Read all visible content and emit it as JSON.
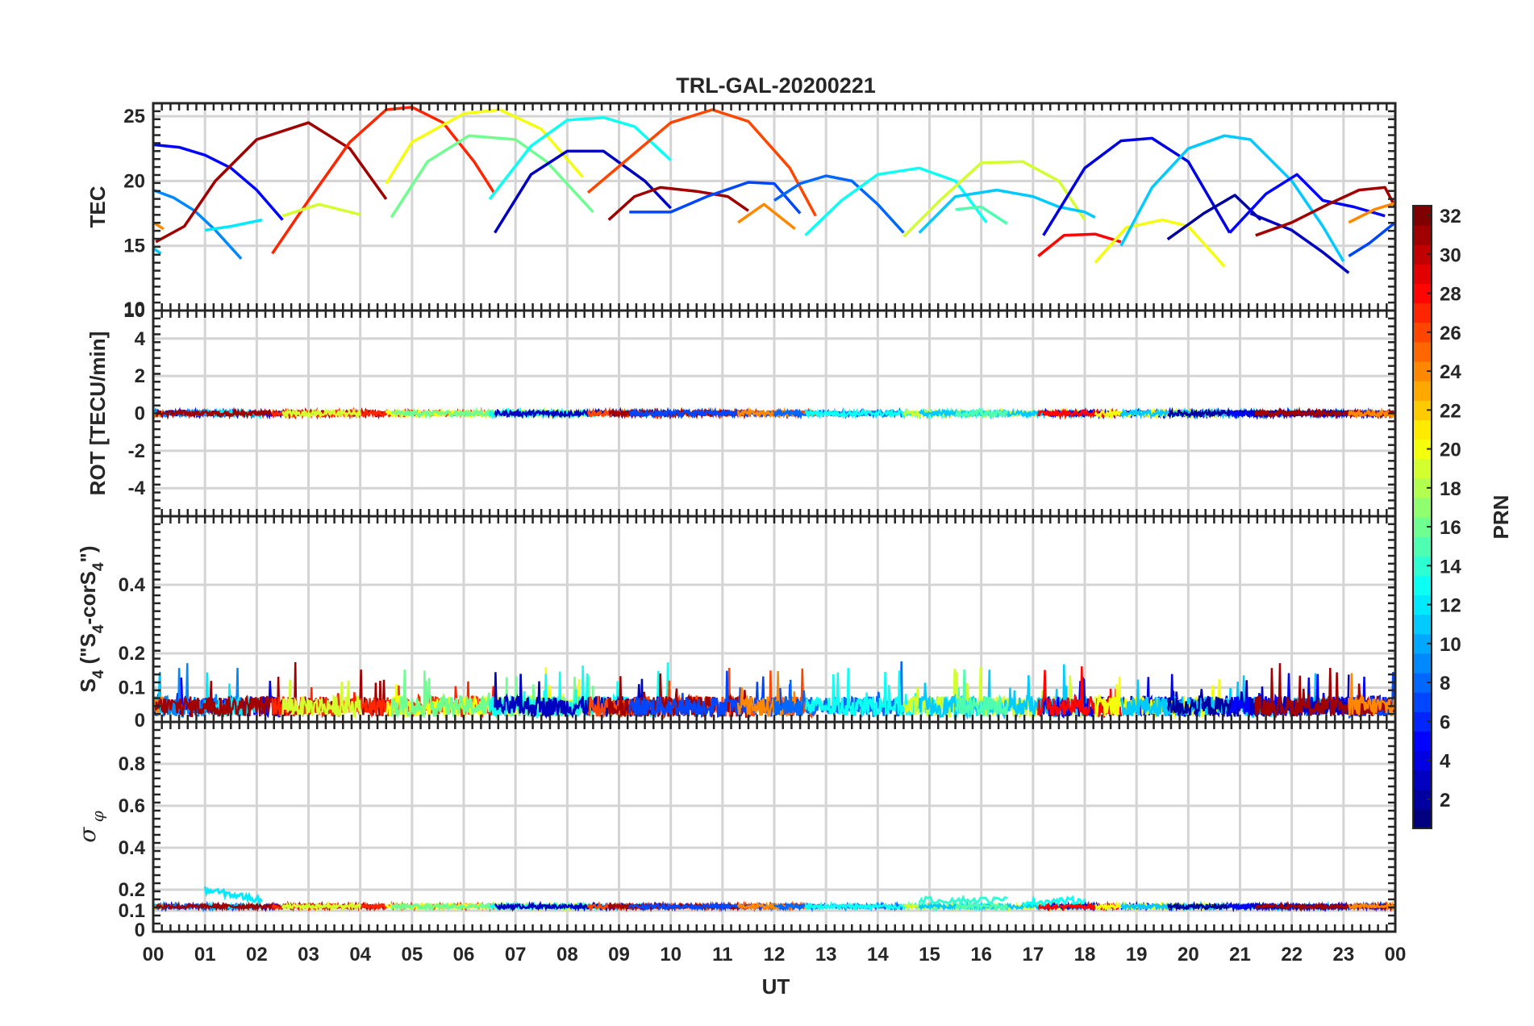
{
  "chart_data": {
    "type": "line",
    "title": "TRL-GAL-20200221",
    "xlabel": "UT",
    "x_ticks": [
      "00",
      "01",
      "02",
      "03",
      "04",
      "05",
      "06",
      "07",
      "08",
      "09",
      "10",
      "11",
      "12",
      "13",
      "14",
      "15",
      "16",
      "17",
      "18",
      "19",
      "20",
      "21",
      "22",
      "23",
      "00"
    ],
    "xlim": [
      0,
      24
    ],
    "colorbar": {
      "label": "PRN",
      "range": [
        1,
        32
      ],
      "ticks": [
        "2",
        "4",
        "6",
        "8",
        "10",
        "12",
        "14",
        "16",
        "18",
        "20",
        "22",
        "24",
        "26",
        "28",
        "30",
        "32"
      ],
      "colormap": "jet"
    },
    "panels": [
      {
        "id": "tec",
        "ylabel": "TEC",
        "ylim": [
          10,
          26
        ],
        "yticks": [
          "10",
          "15",
          "20",
          "25"
        ],
        "series": [
          {
            "prn": 5,
            "x": [
              0.0,
              0.5,
              1.0,
              1.5,
              2.0,
              2.5
            ],
            "y": [
              22.8,
              22.6,
              22.0,
              21.0,
              19.3,
              17.0
            ]
          },
          {
            "prn": 9,
            "x": [
              0.0,
              0.4,
              0.8,
              1.2,
              1.7
            ],
            "y": [
              19.3,
              18.7,
              17.7,
              16.2,
              14.0
            ]
          },
          {
            "prn": 12,
            "x": [
              1.0,
              1.5,
              2.1
            ],
            "y": [
              16.2,
              16.5,
              17.0
            ]
          },
          {
            "prn": 11,
            "x": [
              0.0,
              0.15
            ],
            "y": [
              14.8,
              14.4
            ]
          },
          {
            "prn": 24,
            "x": [
              0.0,
              0.2
            ],
            "y": [
              16.8,
              16.3
            ]
          },
          {
            "prn": 31,
            "x": [
              0.05,
              0.6,
              1.2,
              2.0,
              3.0,
              3.8,
              4.5
            ],
            "y": [
              15.3,
              16.5,
              20.0,
              23.2,
              24.5,
              22.5,
              18.6
            ]
          },
          {
            "prn": 27,
            "x": [
              2.3,
              3.0,
              3.8,
              4.5,
              5.0,
              5.6,
              6.2,
              6.6
            ],
            "y": [
              14.4,
              18.5,
              23.0,
              25.5,
              25.7,
              24.5,
              21.5,
              19.0
            ]
          },
          {
            "prn": 19,
            "x": [
              2.5,
              3.2,
              4.0
            ],
            "y": [
              17.3,
              18.2,
              17.4
            ]
          },
          {
            "prn": 20,
            "x": [
              4.5,
              5.0,
              6.0,
              6.7,
              7.5,
              8.3
            ],
            "y": [
              19.8,
              23.0,
              25.2,
              25.5,
              24.0,
              20.3
            ]
          },
          {
            "prn": 16,
            "x": [
              4.6,
              5.3,
              6.1,
              7.0,
              7.6,
              8.5
            ],
            "y": [
              17.2,
              21.5,
              23.5,
              23.2,
              21.5,
              17.6
            ]
          },
          {
            "prn": 13,
            "x": [
              6.5,
              7.3,
              8.0,
              8.7,
              9.3,
              10.0
            ],
            "y": [
              18.6,
              22.7,
              24.7,
              24.9,
              24.2,
              21.6
            ]
          },
          {
            "prn": 3,
            "x": [
              6.6,
              7.3,
              8.0,
              8.7,
              9.5,
              10.0
            ],
            "y": [
              16.0,
              20.5,
              22.3,
              22.3,
              20.0,
              17.9
            ]
          },
          {
            "prn": 26,
            "x": [
              8.4,
              9.2,
              10.0,
              10.8,
              11.5,
              12.3,
              12.8
            ],
            "y": [
              19.1,
              21.8,
              24.5,
              25.5,
              24.6,
              21.0,
              17.3
            ]
          },
          {
            "prn": 31,
            "x": [
              8.8,
              9.3,
              9.8,
              10.5,
              11.1,
              11.5
            ],
            "y": [
              17.0,
              18.8,
              19.5,
              19.2,
              18.8,
              17.7
            ]
          },
          {
            "prn": 7,
            "x": [
              9.2,
              10.0,
              10.7,
              11.5,
              12.0,
              12.5
            ],
            "y": [
              17.6,
              17.6,
              18.8,
              19.9,
              19.8,
              17.5
            ]
          },
          {
            "prn": 24,
            "x": [
              11.3,
              11.8,
              12.4
            ],
            "y": [
              16.8,
              18.2,
              16.3
            ]
          },
          {
            "prn": 8,
            "x": [
              12.0,
              12.5,
              13.0,
              13.5,
              14.0,
              14.5
            ],
            "y": [
              18.5,
              19.8,
              20.4,
              20.0,
              18.2,
              16.0
            ]
          },
          {
            "prn": 13,
            "x": [
              12.6,
              13.3,
              14.0,
              14.8,
              15.5,
              16.1
            ],
            "y": [
              15.8,
              18.5,
              20.5,
              21.0,
              20.0,
              16.8
            ]
          },
          {
            "prn": 19,
            "x": [
              14.5,
              15.2,
              16.0,
              16.8,
              17.5,
              18.0
            ],
            "y": [
              15.7,
              18.5,
              21.4,
              21.5,
              20.0,
              17.0
            ]
          },
          {
            "prn": 11,
            "x": [
              14.8,
              15.5,
              16.3,
              17.0,
              17.5,
              18.0,
              18.2
            ],
            "y": [
              16.0,
              18.8,
              19.3,
              18.8,
              18.0,
              17.6,
              17.2
            ]
          },
          {
            "prn": 15,
            "x": [
              15.5,
              16.0,
              16.5
            ],
            "y": [
              17.8,
              18.0,
              16.7
            ]
          },
          {
            "prn": 4,
            "x": [
              17.2,
              18.0,
              18.7,
              19.3,
              20.0,
              20.8
            ],
            "y": [
              15.8,
              21.0,
              23.1,
              23.3,
              21.5,
              16.0
            ]
          },
          {
            "prn": 28,
            "x": [
              17.1,
              17.6,
              18.2,
              18.7
            ],
            "y": [
              14.2,
              15.8,
              15.9,
              15.3
            ]
          },
          {
            "prn": 20,
            "x": [
              18.2,
              18.8,
              19.5,
              20.0,
              20.7
            ],
            "y": [
              13.7,
              16.4,
              17.0,
              16.5,
              13.4
            ]
          },
          {
            "prn": 11,
            "x": [
              18.7,
              19.3,
              20.0,
              20.7,
              21.2,
              22.0,
              22.6,
              23.0
            ],
            "y": [
              15.0,
              19.5,
              22.5,
              23.5,
              23.2,
              20.0,
              16.5,
              13.8
            ]
          },
          {
            "prn": 2,
            "x": [
              19.6,
              20.3,
              20.9,
              21.4
            ],
            "y": [
              15.5,
              17.5,
              18.9,
              17.0
            ]
          },
          {
            "prn": 5,
            "x": [
              20.8,
              21.5,
              22.1,
              22.6,
              23.2,
              23.8
            ],
            "y": [
              16.0,
              19.0,
              20.5,
              18.5,
              18.0,
              17.3
            ]
          },
          {
            "prn": 3,
            "x": [
              21.2,
              22.0,
              22.6,
              23.1
            ],
            "y": [
              17.5,
              16.2,
              14.5,
              12.9
            ]
          },
          {
            "prn": 7,
            "x": [
              23.1,
              23.5,
              24.0
            ],
            "y": [
              14.2,
              15.2,
              16.8
            ]
          },
          {
            "prn": 31,
            "x": [
              21.3,
              22.0,
              22.7,
              23.3,
              23.8,
              24.0
            ],
            "y": [
              15.8,
              16.8,
              18.2,
              19.3,
              19.5,
              18.0
            ]
          },
          {
            "prn": 24,
            "x": [
              23.1,
              23.6,
              24.0
            ],
            "y": [
              16.8,
              17.8,
              18.3
            ]
          }
        ]
      },
      {
        "id": "rot",
        "ylabel": "ROT [TECU/min]",
        "ylim": [
          -5.5,
          5.5
        ],
        "yticks": [
          "-4",
          "-2",
          "0",
          "2",
          "4"
        ],
        "top_tick_label": "10",
        "baseline_value": 0.0,
        "noise_amplitude": 0.15
      },
      {
        "id": "s4",
        "ylabel": "S4 (\"S4-corS4\")",
        "ylim": [
          0,
          0.6
        ],
        "yticks": [
          "0",
          "0.1",
          "0.2",
          "0.4"
        ],
        "baseline_value": 0.045,
        "noise_amplitude": 0.03,
        "max_spike": 0.18
      },
      {
        "id": "sigma",
        "ylabel": "σ φ",
        "ylim": [
          0,
          1.0
        ],
        "yticks": [
          "0",
          "0.1",
          "0.2",
          "0.4",
          "0.6",
          "0.8"
        ],
        "baseline_value": 0.12,
        "noise_amplitude": 0.01,
        "enhanced_segments": [
          {
            "prn": 12,
            "x": [
              1.0,
              2.1
            ],
            "y": [
              0.2,
              0.15
            ]
          },
          {
            "prn": 14,
            "x": [
              14.8,
              16.5
            ],
            "y": [
              0.15,
              0.15
            ]
          },
          {
            "prn": 13,
            "x": [
              16.8,
              18.0
            ],
            "y": [
              0.14,
              0.15
            ]
          }
        ]
      }
    ]
  }
}
